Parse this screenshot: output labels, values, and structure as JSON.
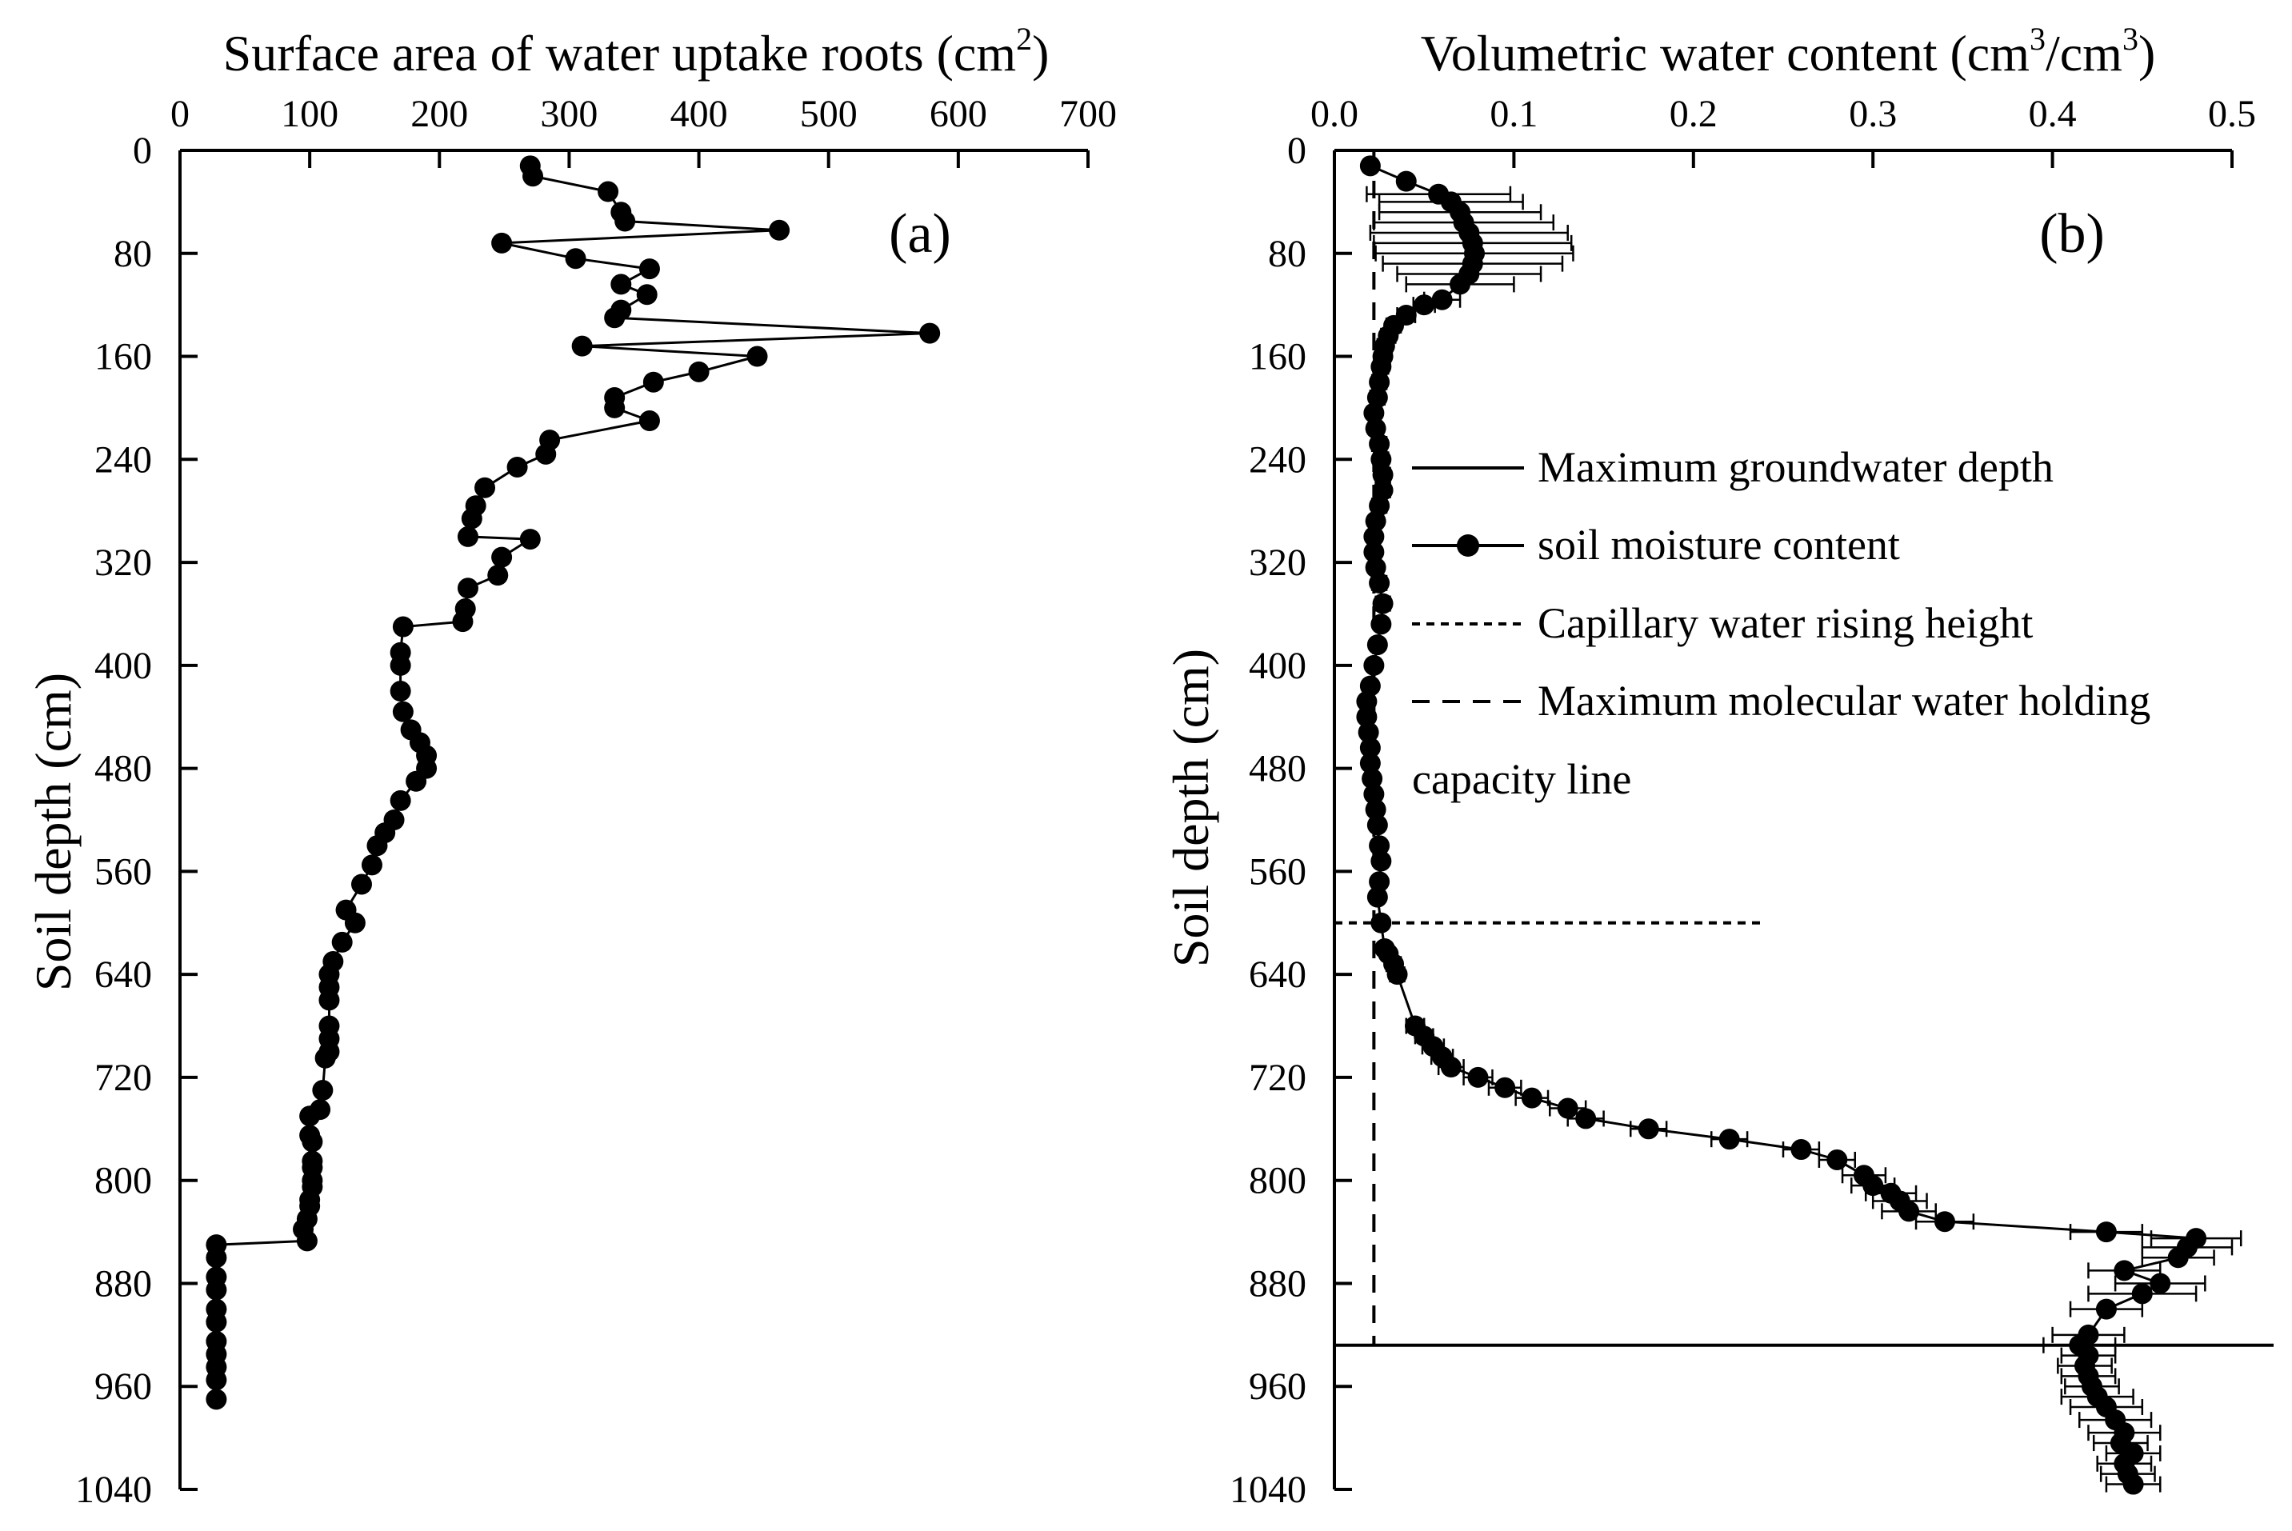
{
  "chart_data": [
    {
      "id": "a",
      "type": "scatter",
      "panel_label": "(a)",
      "xlabel": "Surface area of water uptake roots  (cm",
      "xlabel_sup": "2",
      "xlabel_end": ")",
      "ylabel": "Soil depth (cm)",
      "xlim": [
        0,
        700
      ],
      "ylim": [
        0,
        1040
      ],
      "y_inverted": true,
      "x_ticks": [
        "0",
        "100",
        "200",
        "300",
        "400",
        "500",
        "600",
        "700"
      ],
      "y_ticks": [
        "0",
        "80",
        "160",
        "240",
        "320",
        "400",
        "480",
        "560",
        "640",
        "720",
        "800",
        "880",
        "960",
        "1040"
      ],
      "series": [
        {
          "name": "Surface area of water uptake roots",
          "x": [
            270,
            272,
            330,
            340,
            343,
            462,
            248,
            305,
            362,
            340,
            360,
            340,
            335,
            578,
            310,
            445,
            400,
            365,
            335,
            335,
            362,
            285,
            282,
            260,
            235,
            228,
            225,
            222,
            270,
            248,
            245,
            222,
            220,
            218,
            172,
            170,
            170,
            170,
            172,
            178,
            185,
            190,
            190,
            182,
            170,
            165,
            158,
            152,
            148,
            140,
            128,
            135,
            125,
            118,
            115,
            115,
            115,
            115,
            115,
            115,
            112,
            110,
            108,
            100,
            100,
            102,
            102,
            102,
            102,
            102,
            100,
            100,
            98,
            95,
            98,
            28,
            28,
            28,
            28,
            28,
            28,
            28,
            28,
            28,
            28,
            28
          ],
          "y": [
            12,
            20,
            32,
            48,
            55,
            62,
            72,
            84,
            92,
            104,
            112,
            124,
            130,
            142,
            152,
            160,
            172,
            180,
            192,
            200,
            210,
            225,
            236,
            246,
            262,
            276,
            286,
            300,
            302,
            316,
            330,
            340,
            356,
            366,
            370,
            390,
            400,
            420,
            436,
            450,
            460,
            470,
            480,
            490,
            505,
            520,
            530,
            540,
            555,
            570,
            590,
            600,
            615,
            630,
            640,
            650,
            660,
            680,
            690,
            700,
            705,
            730,
            745,
            750,
            765,
            770,
            785,
            790,
            800,
            805,
            815,
            820,
            830,
            838,
            847,
            850,
            860,
            875,
            885,
            900,
            910,
            925,
            935,
            945,
            955,
            970
          ]
        }
      ]
    },
    {
      "id": "b",
      "type": "scatter",
      "panel_label": "(b)",
      "xlabel": "Volumetric water content (cm",
      "xlabel_sup": "3",
      "xlabel_mid": "/cm",
      "xlabel_sup2": "3",
      "xlabel_end": ")",
      "ylabel": "Soil depth (cm)",
      "xlim": [
        0,
        0.5
      ],
      "ylim": [
        0,
        1040
      ],
      "y_inverted": true,
      "x_ticks": [
        "0.0",
        "0.1",
        "0.2",
        "0.3",
        "0.4",
        "0.5"
      ],
      "y_ticks": [
        "0",
        "80",
        "160",
        "240",
        "320",
        "400",
        "480",
        "560",
        "640",
        "720",
        "800",
        "880",
        "960",
        "1040"
      ],
      "series": [
        {
          "name": "soil moisture content",
          "x": [
            0.02,
            0.04,
            0.058,
            0.065,
            0.07,
            0.072,
            0.075,
            0.077,
            0.078,
            0.077,
            0.075,
            0.07,
            0.06,
            0.05,
            0.04,
            0.033,
            0.03,
            0.028,
            0.027,
            0.026,
            0.025,
            0.024,
            0.022,
            0.023,
            0.025,
            0.026,
            0.027,
            0.027,
            0.025,
            0.023,
            0.022,
            0.022,
            0.023,
            0.025,
            0.027,
            0.026,
            0.024,
            0.022,
            0.02,
            0.018,
            0.018,
            0.019,
            0.02,
            0.02,
            0.021,
            0.022,
            0.023,
            0.024,
            0.025,
            0.026,
            0.025,
            0.024,
            0.026,
            0.028,
            0.03,
            0.033,
            0.035,
            0.045,
            0.05,
            0.055,
            0.06,
            0.065,
            0.08,
            0.095,
            0.11,
            0.13,
            0.14,
            0.175,
            0.22,
            0.26,
            0.28,
            0.295,
            0.3,
            0.31,
            0.315,
            0.32,
            0.34,
            0.43,
            0.48,
            0.475,
            0.47,
            0.44,
            0.46,
            0.45,
            0.43,
            0.42,
            0.415,
            0.42,
            0.418,
            0.42,
            0.422,
            0.425,
            0.43,
            0.435,
            0.44,
            0.438,
            0.445,
            0.44,
            0.442,
            0.445
          ],
          "y": [
            12,
            24,
            34,
            40,
            48,
            56,
            64,
            72,
            80,
            88,
            96,
            104,
            116,
            120,
            128,
            136,
            144,
            152,
            160,
            168,
            180,
            192,
            204,
            216,
            228,
            240,
            252,
            264,
            276,
            288,
            300,
            312,
            324,
            336,
            352,
            368,
            384,
            400,
            416,
            428,
            440,
            452,
            464,
            476,
            488,
            500,
            512,
            524,
            540,
            552,
            568,
            580,
            600,
            620,
            624,
            632,
            640,
            680,
            688,
            696,
            704,
            712,
            720,
            728,
            736,
            744,
            752,
            760,
            768,
            776,
            784,
            796,
            804,
            810,
            816,
            824,
            832,
            840,
            845,
            852,
            860,
            870,
            880,
            888,
            900,
            920,
            928,
            936,
            944,
            952,
            960,
            968,
            976,
            986,
            996,
            1004,
            1012,
            1020,
            1028,
            1036
          ],
          "xerr": [
            0.002,
            0.003,
            0.04,
            0.04,
            0.045,
            0.05,
            0.055,
            0.055,
            0.055,
            0.05,
            0.04,
            0.03,
            0.01,
            0.006,
            0.005,
            0.004,
            0.004,
            0.004,
            0.004,
            0.004,
            0.004,
            0.004,
            0.003,
            0.003,
            0.004,
            0.004,
            0.004,
            0.004,
            0.004,
            0.003,
            0.003,
            0.003,
            0.003,
            0.004,
            0.004,
            0.003,
            0.003,
            0.003,
            0.003,
            0.003,
            0.003,
            0.003,
            0.003,
            0.003,
            0.003,
            0.003,
            0.003,
            0.003,
            0.003,
            0.003,
            0.003,
            0.003,
            0.003,
            0.003,
            0.003,
            0.004,
            0.004,
            0.005,
            0.005,
            0.006,
            0.006,
            0.007,
            0.008,
            0.009,
            0.009,
            0.01,
            0.01,
            0.01,
            0.01,
            0.01,
            0.01,
            0.012,
            0.012,
            0.014,
            0.015,
            0.015,
            0.016,
            0.02,
            0.025,
            0.025,
            0.02,
            0.02,
            0.025,
            0.03,
            0.02,
            0.02,
            0.02,
            0.015,
            0.015,
            0.015,
            0.015,
            0.02,
            0.02,
            0.02,
            0.02,
            0.015,
            0.015,
            0.015,
            0.015,
            0.015
          ]
        }
      ],
      "reference_lines": {
        "groundwater_depth": 928,
        "capillary_rise_depth": 600,
        "capillary_line_x_end": 0.24,
        "molecular_capacity_x": 0.022
      },
      "legend": [
        {
          "label": "Maximum groundwater depth",
          "style": "solid"
        },
        {
          "label": "soil moisture content",
          "style": "line-marker"
        },
        {
          "label": "Capillary water rising height",
          "style": "dotted"
        },
        {
          "label": "Maximum molecular water holding",
          "label2": "capacity line",
          "style": "dashed"
        }
      ]
    }
  ]
}
